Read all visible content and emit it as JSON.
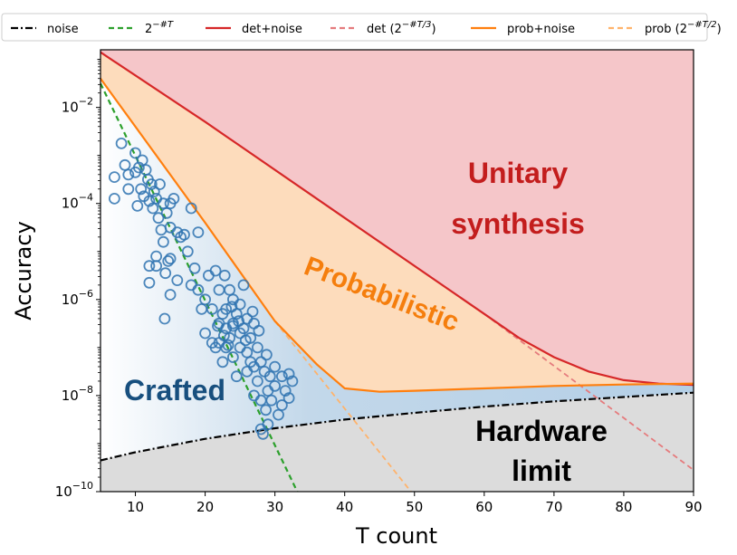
{
  "chart_data": {
    "type": "line",
    "xlabel": "T count",
    "ylabel": "Accuracy",
    "xlim": [
      5,
      90
    ],
    "ylim_log10": [
      -10,
      -0.8
    ],
    "y_scale": "log",
    "grid": false,
    "legend_position": "top",
    "x_ticks": [
      "10",
      "20",
      "30",
      "40",
      "50",
      "60",
      "70",
      "80",
      "90"
    ],
    "y_ticks": [
      {
        "base": "10",
        "exp": "−10",
        "value": -10
      },
      {
        "base": "10",
        "exp": "−8",
        "value": -8
      },
      {
        "base": "10",
        "exp": "−6",
        "value": -6
      },
      {
        "base": "10",
        "exp": "−4",
        "value": -4
      },
      {
        "base": "10",
        "exp": "−2",
        "value": -2
      }
    ],
    "legend": [
      {
        "label": "noise",
        "sup": "",
        "tail": "",
        "color": "#000000",
        "dash": "8,3,2,3",
        "key": "noise"
      },
      {
        "label": "2",
        "sup": "−#T",
        "tail": "",
        "color": "#2ca02c",
        "dash": "6,4",
        "key": "pow2"
      },
      {
        "label": "det+noise",
        "sup": "",
        "tail": "",
        "color": "#d62728",
        "dash": "",
        "key": "det-noise"
      },
      {
        "label": "det (2",
        "sup": "−#T/3",
        "tail": ")",
        "color": "#e57b7d",
        "dash": "6,4",
        "key": "det"
      },
      {
        "label": "prob+noise",
        "sup": "",
        "tail": "",
        "color": "#ff7f0e",
        "dash": "",
        "key": "prob-noise"
      },
      {
        "label": "prob (2",
        "sup": "−#T/2",
        "tail": ")",
        "color": "#ffb36b",
        "dash": "6,4",
        "key": "prob"
      }
    ],
    "regions": [
      {
        "label": "Unitary",
        "color": "#c31d1d",
        "key": "unitary-1"
      },
      {
        "label": "synthesis",
        "color": "#c31d1d",
        "key": "unitary-2"
      },
      {
        "label": "Probabilistic",
        "color": "#f57e0d",
        "key": "probabilistic"
      },
      {
        "label": "Crafted",
        "color": "#174f7e",
        "key": "crafted"
      },
      {
        "label": "Hardware",
        "color": "#000000",
        "key": "hardware-1"
      },
      {
        "label": "limit",
        "color": "#000000",
        "key": "hardware-2"
      }
    ],
    "series": [
      {
        "name": "noise",
        "x": [
          5,
          10,
          20,
          30,
          40,
          50,
          60,
          70,
          80,
          90
        ],
        "y": [
          -9.35,
          -9.18,
          -8.9,
          -8.68,
          -8.5,
          -8.36,
          -8.23,
          -8.12,
          -8.03,
          -7.94
        ]
      },
      {
        "name": "2^-#T",
        "x": [
          5,
          33.2
        ],
        "y": [
          -1.5,
          -10
        ]
      },
      {
        "name": "det+noise",
        "x": [
          5,
          20,
          40,
          60,
          65,
          70,
          75,
          80,
          85,
          90
        ],
        "y": [
          -0.85,
          -2.3,
          -4.3,
          -6.3,
          -6.8,
          -7.2,
          -7.5,
          -7.68,
          -7.75,
          -7.78
        ]
      },
      {
        "name": "det (2^-#T/3)",
        "x": [
          60,
          90
        ],
        "y": [
          -6.3,
          -9.55
        ]
      },
      {
        "name": "prob+noise",
        "x": [
          5,
          20,
          30,
          36,
          40,
          45,
          50,
          60,
          70,
          80,
          90
        ],
        "y": [
          -1.4,
          -4.4,
          -6.45,
          -7.35,
          -7.85,
          -7.92,
          -7.9,
          -7.85,
          -7.8,
          -7.77,
          -7.75
        ]
      },
      {
        "name": "prob (2^-#T/2)",
        "x": [
          30,
          49.5
        ],
        "y": [
          -6.45,
          -10
        ]
      },
      {
        "name": "crafted",
        "points": [
          [
            7,
            -3.45
          ],
          [
            7,
            -3.9
          ],
          [
            8,
            -2.75
          ],
          [
            8.5,
            -3.2
          ],
          [
            9,
            -3.4
          ],
          [
            9,
            -3.7
          ],
          [
            10,
            -2.95
          ],
          [
            10,
            -3.35
          ],
          [
            10.3,
            -4.05
          ],
          [
            10.5,
            -3.25
          ],
          [
            10.8,
            -3.7
          ],
          [
            11,
            -3.1
          ],
          [
            11.2,
            -3.85
          ],
          [
            11.5,
            -3.3
          ],
          [
            11.8,
            -3.5
          ],
          [
            12,
            -3.95
          ],
          [
            12,
            -5.3
          ],
          [
            12,
            -5.65
          ],
          [
            12.3,
            -3.6
          ],
          [
            12.5,
            -4.1
          ],
          [
            12.7,
            -3.75
          ],
          [
            13,
            -3.9
          ],
          [
            13,
            -5.1
          ],
          [
            13,
            -5.3
          ],
          [
            13.3,
            -4.3
          ],
          [
            13.5,
            -3.6
          ],
          [
            13.7,
            -4.55
          ],
          [
            14,
            -4.0
          ],
          [
            14,
            -4.8
          ],
          [
            14.2,
            -6.4
          ],
          [
            14.3,
            -5.45
          ],
          [
            14.5,
            -4.2
          ],
          [
            14.7,
            -5.2
          ],
          [
            15,
            -4.0
          ],
          [
            15,
            -4.5
          ],
          [
            15,
            -5.15
          ],
          [
            15,
            -5.9
          ],
          [
            15.5,
            -3.9
          ],
          [
            16,
            -4.6
          ],
          [
            16,
            -5.6
          ],
          [
            16.5,
            -4.7
          ],
          [
            17,
            -4.65
          ],
          [
            17.5,
            -5.0
          ],
          [
            18,
            -4.1
          ],
          [
            18,
            -5.7
          ],
          [
            18.5,
            -5.35
          ],
          [
            19,
            -5.8
          ],
          [
            19,
            -4.6
          ],
          [
            19.5,
            -6.2
          ],
          [
            20,
            -6.0
          ],
          [
            20,
            -6.7
          ],
          [
            20.5,
            -5.5
          ],
          [
            21,
            -6.2
          ],
          [
            21,
            -6.9
          ],
          [
            21.5,
            -5.4
          ],
          [
            21.5,
            -7.0
          ],
          [
            22,
            -5.8
          ],
          [
            22,
            -6.5
          ],
          [
            22,
            -6.9
          ],
          [
            22.5,
            -6.3
          ],
          [
            22.5,
            -7.3
          ],
          [
            22.8,
            -5.5
          ],
          [
            23,
            -6.2
          ],
          [
            23,
            -6.6
          ],
          [
            23,
            -7.0
          ],
          [
            23.5,
            -5.8
          ],
          [
            23.5,
            -6.8
          ],
          [
            24,
            -6.0
          ],
          [
            24,
            -6.5
          ],
          [
            24,
            -7.2
          ],
          [
            24.5,
            -6.3
          ],
          [
            24.5,
            -7.6
          ],
          [
            25,
            -6.1
          ],
          [
            25,
            -6.7
          ],
          [
            25,
            -7.0
          ],
          [
            25.5,
            -5.7
          ],
          [
            25.5,
            -6.6
          ],
          [
            26,
            -6.4
          ],
          [
            26,
            -7.1
          ],
          [
            26,
            -7.5
          ],
          [
            26.5,
            -6.8
          ],
          [
            26.5,
            -7.3
          ],
          [
            27,
            -6.5
          ],
          [
            27,
            -7.4
          ],
          [
            27,
            -8.0
          ],
          [
            27.5,
            -7.0
          ],
          [
            27.5,
            -7.7
          ],
          [
            28,
            -7.3
          ],
          [
            28,
            -8.1
          ],
          [
            28,
            -8.7
          ],
          [
            28.3,
            -8.8
          ],
          [
            28.5,
            -7.5
          ],
          [
            28.7,
            -8.3
          ],
          [
            29,
            -7.9
          ],
          [
            29,
            -8.6
          ],
          [
            29.3,
            -7.6
          ],
          [
            29.5,
            -8.1
          ],
          [
            30,
            -7.4
          ],
          [
            30,
            -7.8
          ],
          [
            30.5,
            -8.4
          ],
          [
            31,
            -7.6
          ],
          [
            31,
            -8.2
          ],
          [
            31.5,
            -7.9
          ],
          [
            32,
            -7.55
          ],
          [
            32,
            -8.05
          ],
          [
            32.5,
            -7.7
          ],
          [
            24,
            -6.55
          ],
          [
            23.3,
            -6.95
          ],
          [
            24.8,
            -6.45
          ],
          [
            25.8,
            -6.85
          ],
          [
            22.7,
            -6.75
          ],
          [
            21.8,
            -6.55
          ],
          [
            26.8,
            -6.25
          ],
          [
            27.7,
            -6.65
          ],
          [
            28.8,
            -7.15
          ],
          [
            23.8,
            -6.15
          ]
        ]
      }
    ]
  }
}
